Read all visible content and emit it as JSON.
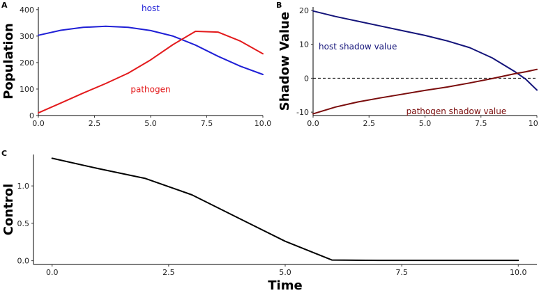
{
  "chart_data": [
    {
      "panel": "A",
      "type": "line",
      "ylabel": "Population",
      "xlabel": "",
      "xlim": [
        0,
        10
      ],
      "ylim": [
        0,
        410
      ],
      "xticks": [
        0.0,
        2.5,
        5.0,
        7.5,
        10.0
      ],
      "xtick_labels": [
        "0.0",
        "2.5",
        "5.0",
        "7.5",
        "10.0"
      ],
      "yticks": [
        0,
        100,
        200,
        300,
        400
      ],
      "ytick_labels": [
        "0",
        "100",
        "200",
        "300",
        "400"
      ],
      "x": [
        0,
        1,
        2,
        3,
        4,
        5,
        6,
        7,
        8,
        9,
        10
      ],
      "series": [
        {
          "name": "host",
          "color": "#1f1fd6",
          "label_at": [
            5,
            405
          ],
          "values": [
            303,
            322,
            333,
            337,
            333,
            321,
            300,
            266,
            224,
            186,
            155
          ]
        },
        {
          "name": "pathogen",
          "color": "#e31a1c",
          "label_at": [
            5,
            98
          ],
          "values": [
            10,
            47,
            85,
            121,
            160,
            210,
            268,
            318,
            315,
            281,
            233
          ]
        }
      ],
      "hline": null
    },
    {
      "panel": "B",
      "type": "line",
      "ylabel": "Shadow Value",
      "xlabel": "",
      "xlim": [
        0,
        10
      ],
      "ylim": [
        -11,
        21
      ],
      "xticks": [
        0.0,
        2.5,
        5.0,
        7.5,
        10.0
      ],
      "xtick_labels": [
        "0.0",
        "2.5",
        "5.0",
        "7.5",
        "10.0"
      ],
      "yticks": [
        -10,
        0,
        10,
        20
      ],
      "ytick_labels": [
        "-10",
        "0",
        "10",
        "20"
      ],
      "x": [
        0,
        1,
        2,
        3,
        4,
        5,
        6,
        7,
        8,
        9,
        9.5,
        10
      ],
      "series": [
        {
          "name": "host shadow value",
          "color": "#14147a",
          "label_at": [
            2,
            9.3
          ],
          "values": [
            19.8,
            18.2,
            16.8,
            15.4,
            14.0,
            12.6,
            11.0,
            9.0,
            6.0,
            2.0,
            -0.3,
            -3.5
          ]
        },
        {
          "name": "pathogen shadow value",
          "color": "#7a0c0c",
          "label_at": [
            6.4,
            -9.8
          ],
          "values": [
            -10.5,
            -8.5,
            -7.0,
            -5.8,
            -4.7,
            -3.6,
            -2.6,
            -1.4,
            -0.1,
            1.3,
            1.9,
            2.6
          ]
        }
      ],
      "hline": 0
    },
    {
      "panel": "C",
      "type": "line",
      "ylabel": "Control",
      "xlabel": "Time",
      "xlim": [
        -0.4,
        10.4
      ],
      "ylim": [
        -0.05,
        1.42
      ],
      "xticks": [
        0.0,
        2.5,
        5.0,
        7.5,
        10.0
      ],
      "xtick_labels": [
        "0.0",
        "2.5",
        "5.0",
        "7.5",
        "10.0"
      ],
      "yticks": [
        0.0,
        0.5,
        1.0
      ],
      "ytick_labels": [
        "0.0",
        "0.5",
        "1.0"
      ],
      "x": [
        0,
        1,
        2,
        3,
        4,
        5,
        6,
        7,
        8,
        9,
        10
      ],
      "series": [
        {
          "name": "",
          "color": "#000000",
          "label_at": null,
          "values": [
            1.37,
            1.23,
            1.1,
            0.88,
            0.57,
            0.26,
            0.01,
            0.005,
            0.005,
            0.005,
            0.005
          ]
        }
      ],
      "hline": null
    }
  ]
}
